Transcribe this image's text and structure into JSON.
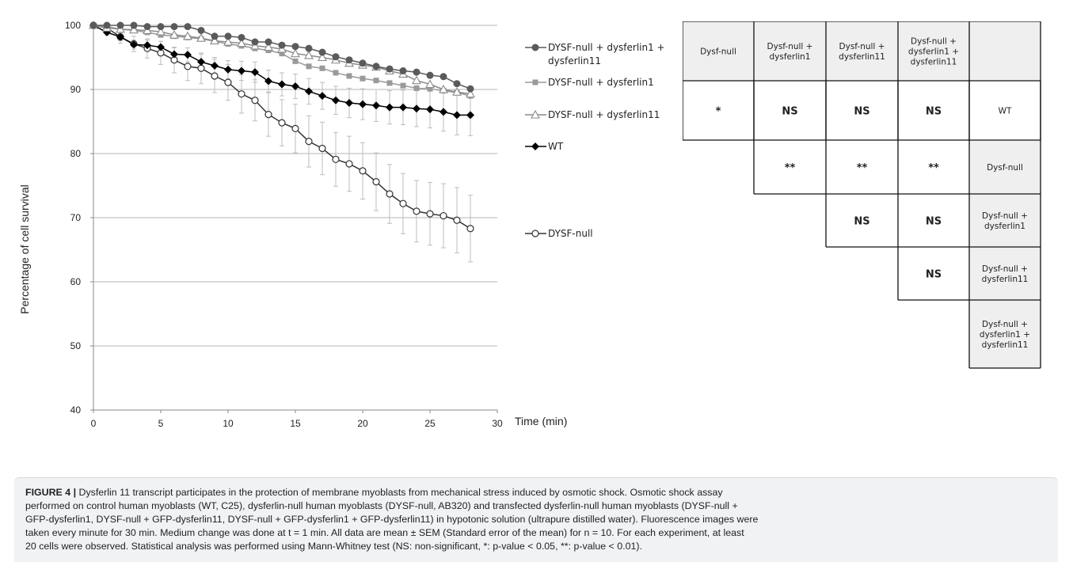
{
  "chart_data": {
    "type": "line",
    "title": "",
    "xlabel": "Time (min)",
    "ylabel": "Percentage of cell survival",
    "xlim": [
      0,
      30
    ],
    "ylim": [
      40,
      100
    ],
    "x_ticks": [
      "0",
      "5",
      "10",
      "15",
      "20",
      "25",
      "30"
    ],
    "y_ticks": [
      "40",
      "50",
      "60",
      "70",
      "80",
      "90",
      "100"
    ],
    "grid": "horizontal",
    "legend_position": "right",
    "x": [
      0,
      1,
      2,
      3,
      4,
      5,
      6,
      7,
      8,
      9,
      10,
      11,
      12,
      13,
      14,
      15,
      16,
      17,
      18,
      19,
      20,
      21,
      22,
      23,
      24,
      25,
      26,
      27,
      28
    ],
    "series": [
      {
        "name": "DYSF-null + dysferlin1 + dysferlin11",
        "legend_lines": [
          "DYSF-null + dysferlin1 +",
          "dysferlin11"
        ],
        "marker": "filled-circle",
        "color": "#5a5a5a",
        "values": [
          100,
          100,
          100,
          100,
          99.8,
          99.8,
          99.8,
          99.8,
          99.2,
          98.3,
          98.3,
          98.1,
          97.4,
          97.4,
          96.9,
          96.7,
          96.4,
          95.8,
          95.1,
          94.6,
          94.1,
          93.6,
          93.2,
          92.9,
          92.7,
          92.2,
          92.0,
          90.9,
          90.1
        ]
      },
      {
        "name": "DYSF-null + dysferlin1",
        "legend_lines": [
          "DYSF-null + dysferlin1"
        ],
        "marker": "filled-square",
        "color": "#9a9a9a",
        "values": [
          100,
          99.8,
          99.4,
          99.2,
          98.9,
          98.5,
          98.3,
          98.1,
          97.9,
          97.5,
          97.1,
          96.8,
          96.4,
          96.1,
          95.6,
          94.4,
          93.6,
          93.3,
          92.6,
          92.1,
          91.7,
          91.4,
          91.0,
          90.6,
          90.2,
          90.1,
          89.8,
          89.5,
          89.0
        ]
      },
      {
        "name": "DYSF-null + dysferlin11",
        "legend_lines": [
          "DYSF-null + dysferlin11"
        ],
        "marker": "open-triangle",
        "color": "#8a8a8a",
        "values": [
          100,
          99.6,
          99.4,
          99.3,
          99.2,
          99.0,
          98.5,
          98.3,
          98.0,
          97.6,
          97.4,
          97.2,
          96.8,
          96.6,
          96.3,
          95.6,
          95.3,
          95.0,
          94.6,
          94.1,
          93.8,
          93.5,
          92.9,
          92.4,
          91.4,
          90.8,
          90.0,
          89.6,
          89.3
        ]
      },
      {
        "name": "WT",
        "legend_lines": [
          "WT"
        ],
        "marker": "filled-diamond",
        "color": "#000000",
        "values": [
          100,
          98.9,
          98.2,
          97.0,
          96.9,
          96.6,
          95.5,
          95.4,
          94.3,
          93.7,
          93.1,
          92.9,
          92.7,
          91.3,
          90.8,
          90.5,
          89.7,
          89.0,
          88.3,
          87.9,
          87.7,
          87.5,
          87.2,
          87.2,
          87.0,
          86.9,
          86.5,
          86.0,
          86.0
        ]
      },
      {
        "name": "DYSF-null",
        "legend_lines": [
          "DYSF-null"
        ],
        "marker": "open-circle",
        "color": "#333333",
        "values": [
          100,
          99.6,
          98.2,
          97.1,
          96.4,
          95.7,
          94.6,
          93.6,
          93.3,
          92.1,
          91.1,
          89.3,
          88.3,
          86.1,
          84.8,
          83.9,
          81.9,
          80.8,
          79.1,
          78.4,
          77.3,
          75.6,
          73.7,
          72.2,
          71.0,
          70.6,
          70.3,
          69.6,
          68.3
        ]
      }
    ],
    "error_bar_halfwidth": {
      "DYSF-null": [
        0,
        0.6,
        1.0,
        1.2,
        1.5,
        1.8,
        2.0,
        2.2,
        2.4,
        2.6,
        2.8,
        3.0,
        3.2,
        3.4,
        3.6,
        3.8,
        4.0,
        4.1,
        4.2,
        4.3,
        4.4,
        4.5,
        4.6,
        4.7,
        4.8,
        4.9,
        5.0,
        5.1,
        5.2
      ],
      "WT": [
        0,
        0.4,
        0.6,
        0.7,
        0.8,
        0.9,
        1.0,
        1.1,
        1.2,
        1.3,
        1.4,
        1.5,
        1.6,
        1.7,
        1.8,
        1.9,
        2.0,
        2.1,
        2.2,
        2.3,
        2.4,
        2.5,
        2.6,
        2.7,
        2.8,
        2.9,
        3.0,
        3.1,
        3.2
      ]
    }
  },
  "stat_table": {
    "header": [
      [
        "Dysf-null"
      ],
      [
        "Dysf-null +",
        "dysferlin1"
      ],
      [
        "Dysf-null +",
        "dysferlin11"
      ],
      [
        "Dysf-null +",
        "dysferlin1 +",
        "dysferlin11"
      ],
      [
        ""
      ]
    ],
    "rows": [
      {
        "label": [
          "WT"
        ],
        "cells": [
          "*",
          "NS",
          "NS",
          "NS"
        ]
      },
      {
        "label": [
          "Dysf-null"
        ],
        "cells": [
          "**",
          "**",
          "**"
        ]
      },
      {
        "label": [
          "Dysf-null +",
          "dysferlin1"
        ],
        "cells": [
          "NS",
          "NS"
        ]
      },
      {
        "label": [
          "Dysf-null +",
          "dysferlin11"
        ],
        "cells": [
          "NS"
        ]
      },
      {
        "label": [
          "Dysf-null +",
          "dysferlin1 +",
          "dysferlin11"
        ],
        "cells": []
      }
    ]
  },
  "caption": {
    "label": "FIGURE 4 |",
    "lines": [
      " Dysferlin 11 transcript participates in the protection of membrane myoblasts from mechanical stress induced by osmotic shock. Osmotic shock assay",
      "performed on control human myoblasts (WT, C25), dysferlin-null human myoblasts (DYSF-null, AB320) and transfected dysferlin-null human myoblasts (DYSF-null +",
      "GFP-dysferlin1, DYSF-null + GFP-dysferlin11, DYSF-null + GFP-dysferlin1 + GFP-dysferlin11) in hypotonic solution (ultrapure distilled water). Fluorescence images were",
      "taken every minute for 30 min. Medium change was done at t = 1 min. All data are mean ± SEM (Standard error of the mean) for n = 10. For each experiment, at least",
      "20 cells were observed. Statistical analysis was performed using Mann-Whitney test (NS: non-significant, *: p-value < 0.05, **: p-value < 0.01)."
    ]
  }
}
